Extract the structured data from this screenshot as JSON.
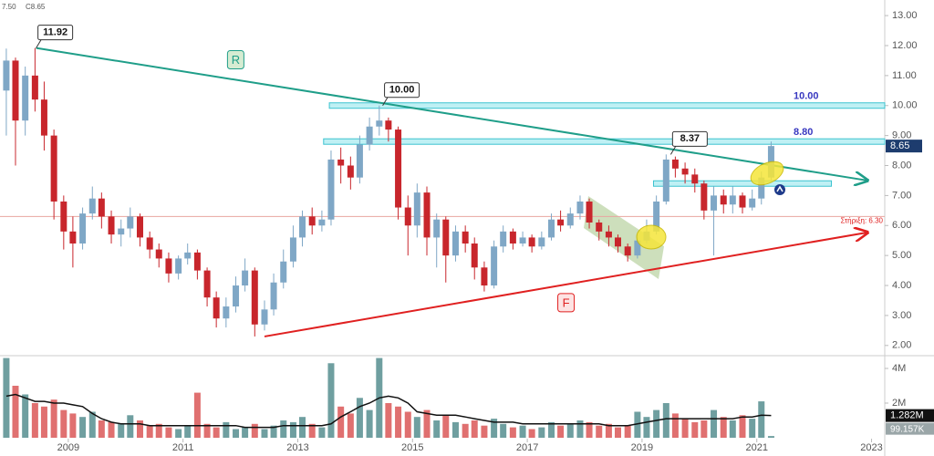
{
  "chart_data": {
    "type": "candlestick",
    "header": [
      "7.50",
      "C8.65"
    ],
    "x": [
      2007.92,
      2008.08,
      2008.25,
      2008.42,
      2008.58,
      2008.75,
      2008.92,
      2009.08,
      2009.25,
      2009.42,
      2009.58,
      2009.75,
      2009.92,
      2010.08,
      2010.25,
      2010.42,
      2010.58,
      2010.75,
      2010.92,
      2011.08,
      2011.25,
      2011.42,
      2011.58,
      2011.75,
      2011.92,
      2012.08,
      2012.25,
      2012.42,
      2012.58,
      2012.75,
      2012.92,
      2013.08,
      2013.25,
      2013.42,
      2013.58,
      2013.75,
      2013.92,
      2014.08,
      2014.25,
      2014.42,
      2014.58,
      2014.75,
      2014.92,
      2015.08,
      2015.25,
      2015.42,
      2015.58,
      2015.75,
      2015.92,
      2016.08,
      2016.25,
      2016.42,
      2016.58,
      2016.75,
      2016.92,
      2017.08,
      2017.25,
      2017.42,
      2017.58,
      2017.75,
      2017.92,
      2018.08,
      2018.25,
      2018.42,
      2018.58,
      2018.75,
      2018.92,
      2019.08,
      2019.25,
      2019.42,
      2019.58,
      2019.75,
      2019.92,
      2020.08,
      2020.25,
      2020.42,
      2020.58,
      2020.75,
      2020.92,
      2021.08,
      2021.25
    ],
    "open": [
      10.5,
      11.5,
      9.5,
      11.0,
      10.2,
      9.0,
      6.8,
      5.8,
      5.4,
      6.4,
      6.9,
      6.3,
      5.7,
      5.9,
      6.3,
      5.6,
      5.2,
      4.9,
      4.4,
      4.9,
      5.1,
      4.5,
      3.6,
      2.9,
      3.3,
      4.0,
      4.5,
      2.7,
      3.2,
      4.1,
      4.8,
      5.6,
      6.3,
      6.0,
      6.2,
      8.2,
      8.0,
      7.6,
      8.7,
      9.3,
      9.5,
      9.2,
      6.6,
      6.0,
      7.1,
      5.6,
      6.2,
      5.0,
      5.8,
      5.4,
      4.6,
      4.0,
      5.3,
      5.8,
      5.4,
      5.6,
      5.3,
      5.6,
      6.2,
      6.0,
      6.4,
      6.8,
      6.1,
      5.8,
      5.6,
      5.3,
      5.0,
      5.5,
      5.8,
      6.8,
      8.2,
      7.9,
      7.7,
      7.4,
      6.5,
      7.0,
      6.7,
      7.0,
      6.6,
      6.9,
      7.6
    ],
    "high": [
      11.9,
      11.6,
      11.3,
      11.92,
      10.8,
      9.2,
      7.0,
      6.3,
      6.6,
      7.3,
      7.1,
      6.5,
      6.2,
      6.6,
      6.4,
      5.8,
      5.4,
      5.1,
      5.0,
      5.4,
      5.2,
      4.6,
      3.8,
      3.6,
      4.3,
      4.9,
      4.6,
      3.5,
      4.4,
      5.2,
      6.0,
      6.5,
      6.6,
      6.5,
      8.5,
      8.6,
      8.3,
      9.0,
      9.6,
      10.0,
      9.6,
      9.3,
      7.0,
      7.4,
      7.3,
      6.4,
      6.3,
      6.0,
      6.0,
      5.6,
      4.8,
      5.5,
      6.0,
      5.9,
      5.8,
      5.7,
      5.8,
      6.4,
      6.5,
      6.6,
      7.0,
      6.9,
      6.2,
      6.0,
      5.7,
      5.4,
      5.7,
      6.2,
      7.0,
      8.37,
      8.3,
      8.1,
      7.9,
      7.5,
      7.3,
      7.2,
      7.3,
      7.1,
      7.2,
      7.8,
      8.8
    ],
    "low": [
      9.0,
      8.0,
      9.0,
      9.8,
      8.5,
      6.2,
      5.2,
      4.6,
      5.2,
      6.2,
      5.9,
      5.4,
      5.3,
      5.6,
      5.3,
      4.9,
      4.6,
      4.1,
      4.2,
      4.7,
      4.2,
      3.3,
      2.6,
      2.6,
      3.1,
      3.8,
      2.3,
      2.5,
      3.0,
      3.9,
      4.6,
      5.3,
      5.7,
      5.8,
      6.0,
      7.4,
      7.2,
      7.4,
      8.5,
      9.0,
      8.8,
      6.2,
      5.0,
      5.6,
      5.0,
      4.6,
      4.1,
      4.8,
      5.1,
      4.2,
      3.8,
      3.9,
      5.1,
      5.2,
      5.3,
      5.1,
      5.2,
      5.5,
      5.8,
      5.9,
      6.2,
      5.9,
      5.5,
      5.3,
      5.1,
      4.8,
      4.9,
      5.4,
      5.7,
      6.7,
      7.6,
      7.4,
      7.1,
      6.2,
      5.0,
      6.4,
      6.4,
      6.4,
      6.5,
      6.7,
      7.5
    ],
    "close": [
      11.5,
      9.5,
      11.0,
      10.2,
      9.0,
      6.8,
      5.8,
      5.4,
      6.4,
      6.9,
      6.3,
      5.7,
      5.9,
      6.3,
      5.6,
      5.2,
      4.9,
      4.4,
      4.9,
      5.1,
      4.5,
      3.6,
      2.9,
      3.3,
      4.0,
      4.5,
      2.7,
      3.2,
      4.1,
      4.8,
      5.6,
      6.3,
      6.0,
      6.2,
      8.2,
      8.0,
      7.6,
      8.7,
      9.3,
      9.5,
      9.2,
      6.6,
      6.0,
      7.1,
      5.6,
      6.2,
      5.0,
      5.8,
      5.4,
      4.6,
      4.0,
      5.3,
      5.8,
      5.4,
      5.6,
      5.3,
      5.6,
      6.2,
      6.0,
      6.4,
      6.8,
      6.1,
      5.8,
      5.6,
      5.3,
      5.0,
      5.5,
      5.8,
      6.8,
      8.2,
      7.9,
      7.7,
      7.4,
      6.5,
      7.0,
      6.7,
      7.0,
      6.6,
      6.9,
      7.6,
      8.65
    ],
    "last_label": "8.65",
    "up_color": "#7fa7c6",
    "down_color": "#c8262c",
    "xlim": [
      2007.81,
      2023.23
    ],
    "xticks": [
      2009,
      2011,
      2013,
      2015,
      2017,
      2019,
      2021,
      2023
    ],
    "ylim": [
      1.72,
      13.52
    ],
    "yticks": [
      {
        "value": 2,
        "label": "2.00"
      },
      {
        "value": 3,
        "label": "3.00"
      },
      {
        "value": 4,
        "label": "4.00"
      },
      {
        "value": 5,
        "label": "5.00"
      },
      {
        "value": 6,
        "label": "6.00"
      },
      {
        "value": 7,
        "label": "7.00"
      },
      {
        "value": 8,
        "label": "8.00"
      },
      {
        "value": 9,
        "label": "9.00"
      },
      {
        "value": 10,
        "label": "10.00"
      },
      {
        "value": 11,
        "label": "11.00"
      },
      {
        "value": 12,
        "label": "12.00"
      },
      {
        "value": 13,
        "label": "13.00"
      }
    ],
    "volume": {
      "values": [
        4600000,
        3000000,
        2500000,
        2000000,
        1800000,
        2200000,
        1600000,
        1400000,
        1200000,
        1500000,
        1000000,
        900000,
        800000,
        1300000,
        1000000,
        700000,
        800000,
        600000,
        500000,
        700000,
        2600000,
        800000,
        600000,
        900000,
        500000,
        600000,
        800000,
        500000,
        700000,
        1000000,
        900000,
        1200000,
        800000,
        600000,
        4300000,
        1800000,
        1400000,
        2300000,
        1600000,
        4600000,
        2000000,
        1800000,
        1500000,
        1200000,
        1600000,
        1000000,
        1300000,
        900000,
        800000,
        1000000,
        700000,
        1100000,
        800000,
        600000,
        700000,
        500000,
        600000,
        900000,
        700000,
        800000,
        1000000,
        900000,
        700000,
        800000,
        600000,
        700000,
        1500000,
        1200000,
        1600000,
        2000000,
        1400000,
        1100000,
        900000,
        1000000,
        1600000,
        1200000,
        1000000,
        1300000,
        1100000,
        2100000,
        99157
      ],
      "last_label": "99.157K",
      "up_color": "#6f9fa0",
      "down_color": "#e07070",
      "ma": {
        "color": "#111111",
        "values": [
          2400000,
          2500000,
          2300000,
          2100000,
          2100000,
          2000000,
          2000000,
          1900000,
          1800000,
          1400000,
          1100000,
          900000,
          800000,
          800000,
          800000,
          700000,
          700000,
          700000,
          700000,
          700000,
          700000,
          700000,
          700000,
          700000,
          700000,
          600000,
          600000,
          600000,
          600000,
          700000,
          700000,
          700000,
          700000,
          700000,
          800000,
          1200000,
          1500000,
          1800000,
          2000000,
          2300000,
          2400000,
          2300000,
          2000000,
          1500000,
          1400000,
          1300000,
          1300000,
          1300000,
          1200000,
          1100000,
          1000000,
          900000,
          900000,
          900000,
          800000,
          800000,
          800000,
          800000,
          800000,
          800000,
          800000,
          800000,
          800000,
          700000,
          700000,
          700000,
          800000,
          900000,
          1000000,
          1100000,
          1100000,
          1100000,
          1100000,
          1100000,
          1100000,
          1100000,
          1100000,
          1200000,
          1200000,
          1300000,
          1282000
        ],
        "last_label": "1.282M"
      },
      "ylim": [
        0,
        4630000
      ],
      "yticks": [
        {
          "value": 4000000,
          "label": "4M"
        },
        {
          "value": 2000000,
          "label": "2M"
        }
      ]
    },
    "trendlines": [
      {
        "label": "R",
        "color": "#1f9e89",
        "x": [
          2008.44,
          2022.93
        ],
        "y": [
          11.92,
          7.5
        ]
      },
      {
        "label": "F",
        "color": "#e02020",
        "x": [
          2012.42,
          2022.93
        ],
        "y": [
          2.3,
          5.77
        ]
      }
    ],
    "zones": [
      {
        "value": 10,
        "label": "10.00",
        "x": [
          2013.55,
          2023.23
        ]
      },
      {
        "value": 8.8,
        "label": "8.80",
        "x": [
          2013.45,
          2023.23
        ]
      },
      {
        "value": 7.4,
        "x": [
          2019.2,
          2022.3
        ]
      }
    ],
    "support": {
      "value": 6.3,
      "label": "Στήριξη: 6.30",
      "color": "#e8a6a0"
    },
    "callouts": [
      {
        "x": 2008.44,
        "value": 11.92,
        "label": "11.92"
      },
      {
        "x": 2014.48,
        "value": 10,
        "label": "10.00"
      },
      {
        "x": 2019.5,
        "value": 8.37,
        "label": "8.37"
      }
    ]
  }
}
